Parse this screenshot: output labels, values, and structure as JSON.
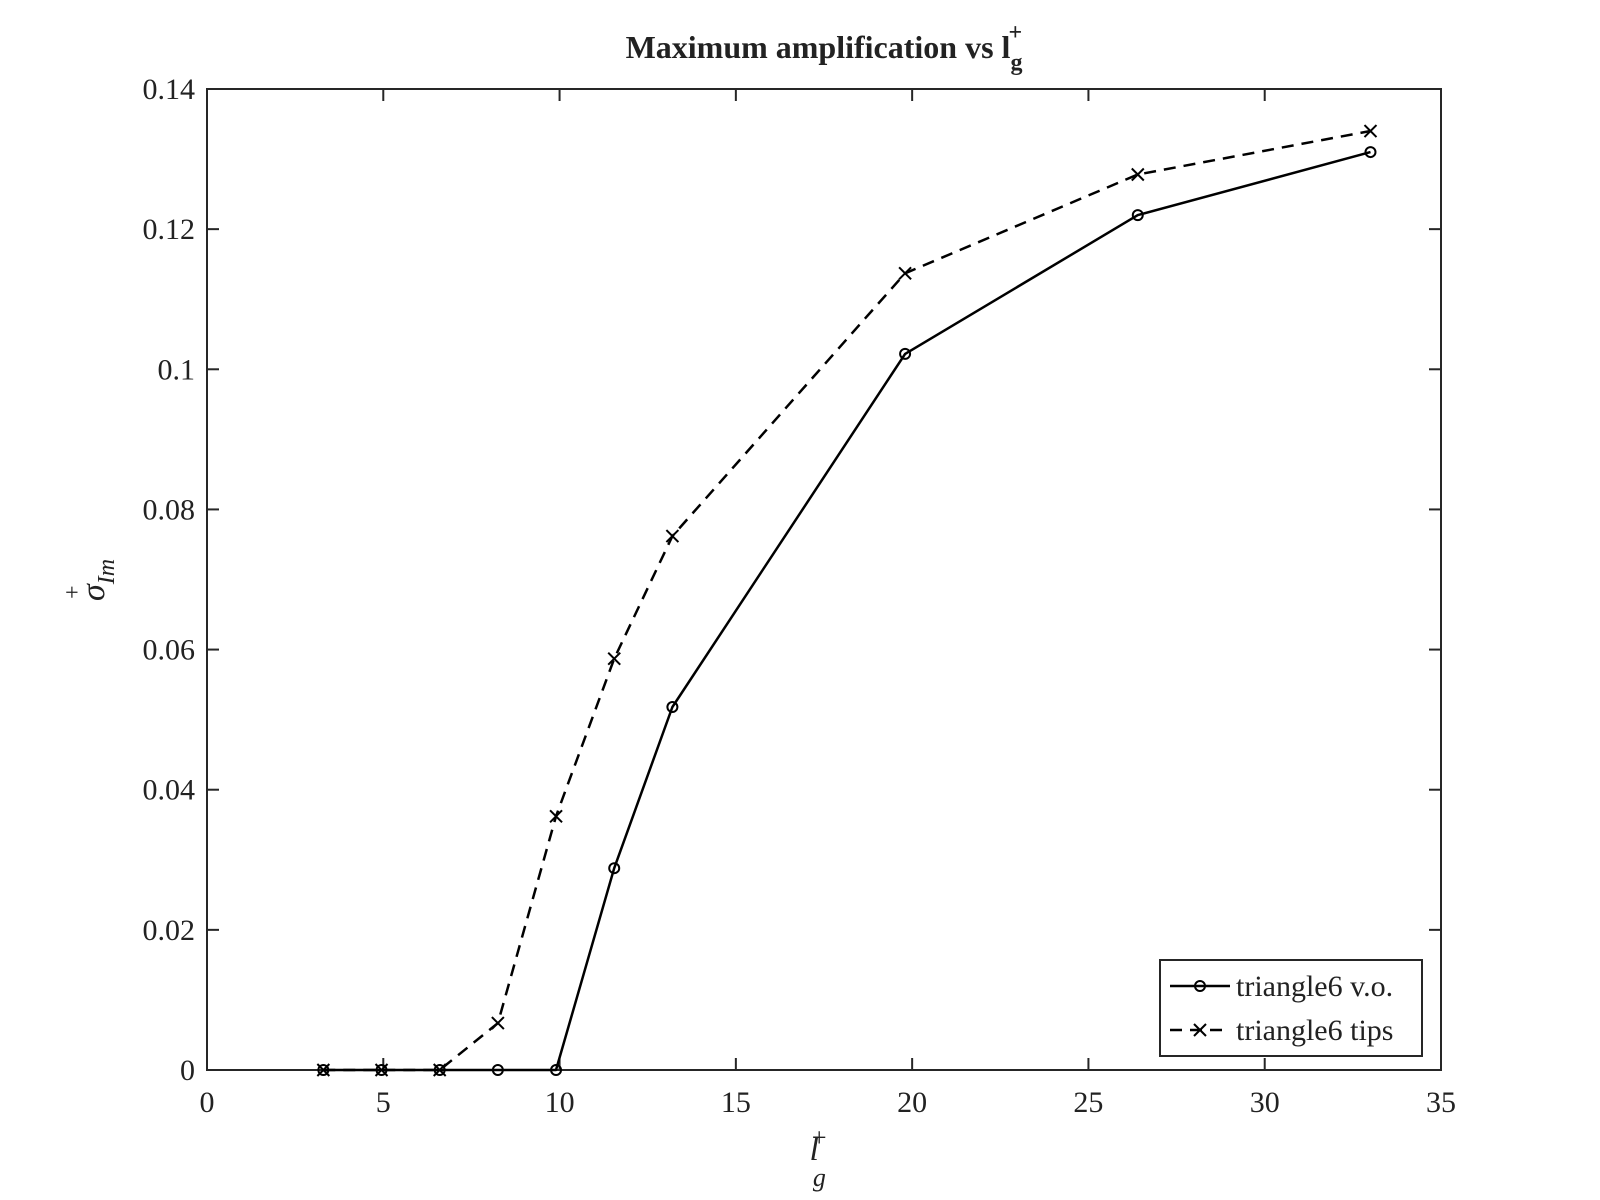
{
  "chart_data": {
    "type": "line",
    "title": "Maximum amplification vs l",
    "title_superscript": "+",
    "title_subscript": "g",
    "xlabel": "l",
    "xlabel_superscript": "+",
    "xlabel_subscript": "g",
    "ylabel": "σ",
    "ylabel_superscript": "+",
    "ylabel_subscript": "Im",
    "xlim": [
      0,
      35
    ],
    "ylim": [
      0,
      0.14
    ],
    "x_ticks": [
      "0",
      "5",
      "10",
      "15",
      "20",
      "25",
      "30",
      "35"
    ],
    "y_ticks": [
      "0",
      "0.02",
      "0.04",
      "0.06",
      "0.08",
      "0.1",
      "0.12",
      "0.14"
    ],
    "grid": false,
    "legend_position": "bottom-right",
    "series": [
      {
        "name": "triangle6 v.o.",
        "line_style": "solid",
        "marker": "circle",
        "color": "#000000",
        "x": [
          3.3,
          4.95,
          6.6,
          8.25,
          9.9,
          11.55,
          13.2,
          19.8,
          26.4,
          33.0
        ],
        "y": [
          0,
          0,
          0,
          0,
          0,
          0.0288,
          0.0518,
          0.1022,
          0.122,
          0.131
        ]
      },
      {
        "name": "triangle6 tips",
        "line_style": "dashed",
        "marker": "x",
        "color": "#000000",
        "x": [
          3.3,
          4.95,
          6.6,
          8.25,
          9.9,
          11.55,
          13.2,
          19.8,
          26.4,
          33.0
        ],
        "y": [
          0,
          0,
          0,
          0.0067,
          0.0362,
          0.0587,
          0.0762,
          0.1137,
          0.1278,
          0.134
        ]
      }
    ]
  }
}
